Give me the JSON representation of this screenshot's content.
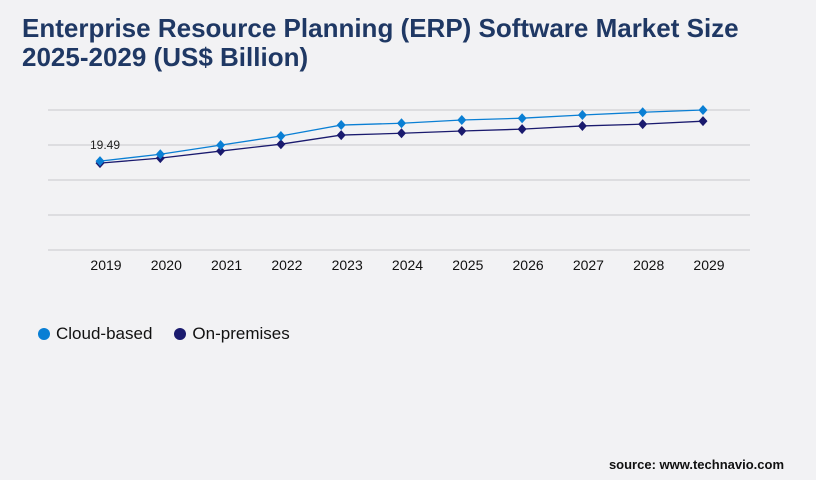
{
  "title": "Enterprise Resource Planning (ERP) Software Market Size 2025-2029 (US$ Billion)",
  "source": "source: www.technavio.com",
  "chart_data": {
    "type": "line",
    "title": "Enterprise Resource Planning (ERP) Software Market Size 2025-2029 (US$ Billion)",
    "categories": [
      "2019",
      "2020",
      "2021",
      "2022",
      "2023",
      "2024",
      "2025",
      "2026",
      "2027",
      "2028",
      "2029"
    ],
    "series": [
      {
        "name": "Cloud-based",
        "color": "#0a7fd4",
        "values": [
          19.49,
          21.0,
          23.0,
          25.0,
          27.4,
          27.8,
          28.5,
          28.9,
          29.6,
          30.2,
          30.7
        ]
      },
      {
        "name": "On-premises",
        "color": "#1a1a6e",
        "values": [
          19.05,
          20.15,
          21.7,
          23.2,
          25.2,
          25.6,
          26.1,
          26.5,
          27.2,
          27.6,
          28.25
        ]
      }
    ],
    "annotations": [
      {
        "category": "2019",
        "series": "Cloud-based",
        "label": "19.49"
      }
    ],
    "ylim": [
      0,
      30.7
    ],
    "grid": true,
    "legend": "bottom-left"
  }
}
